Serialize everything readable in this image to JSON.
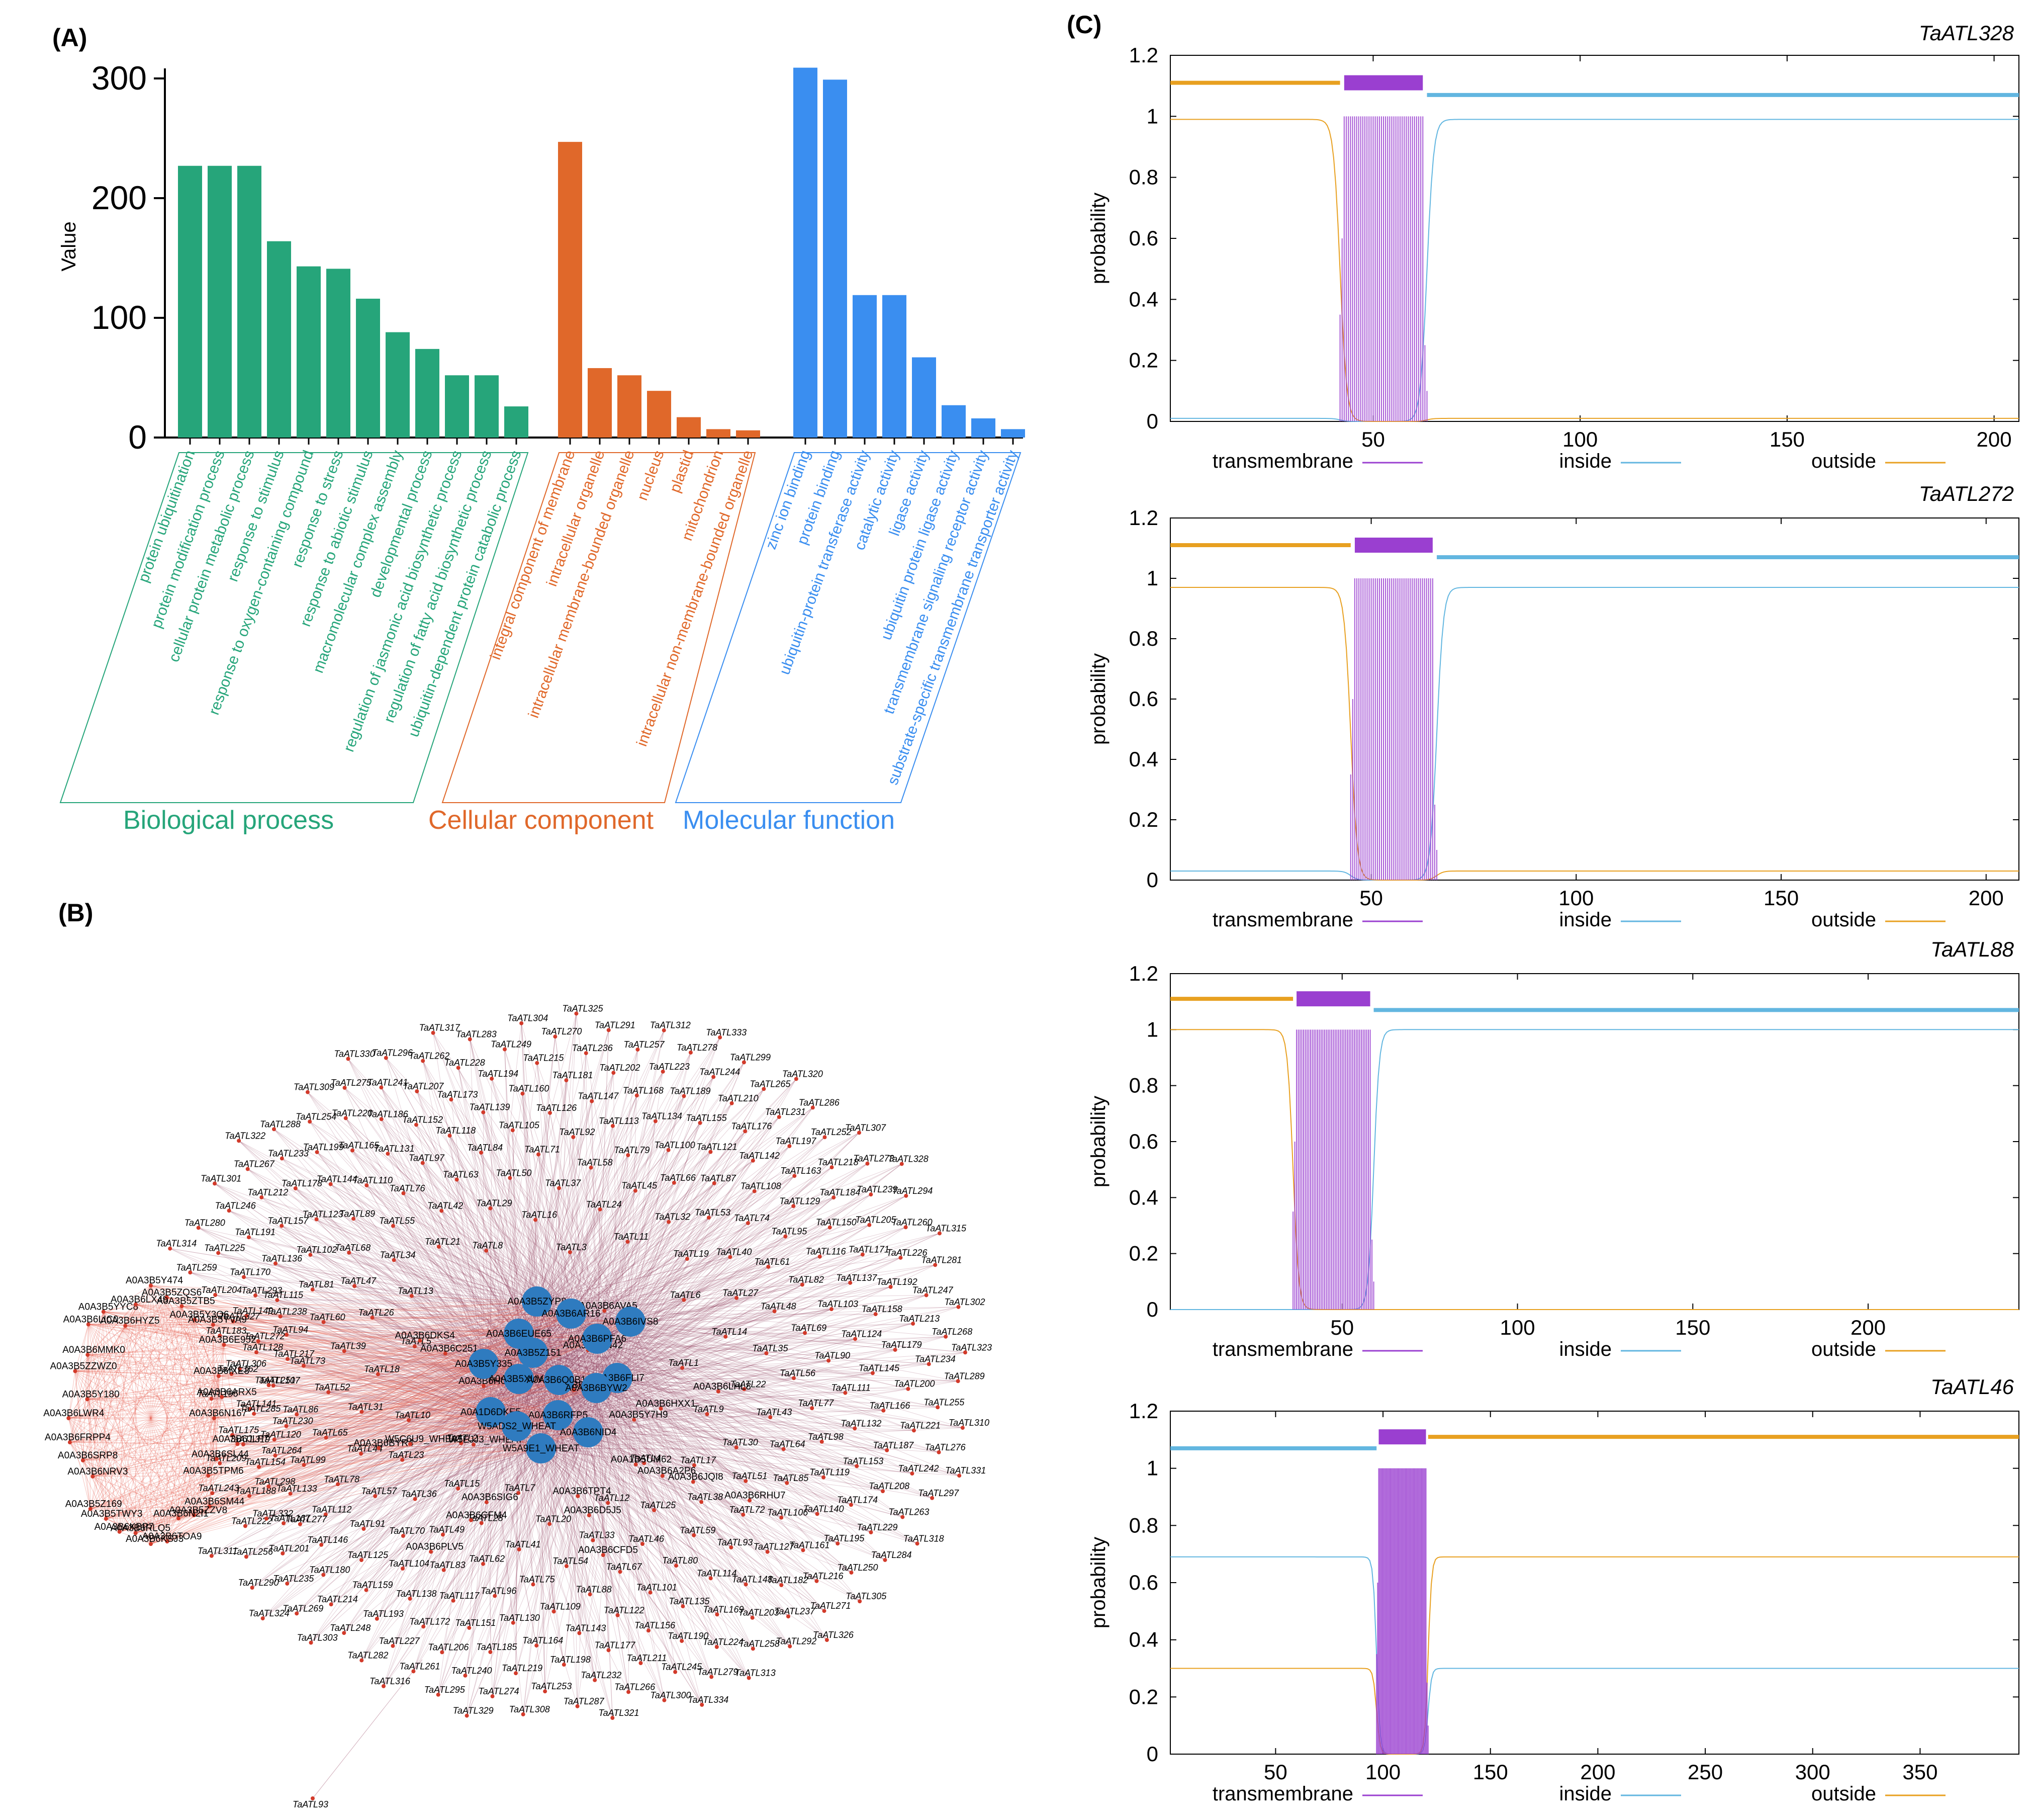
{
  "panel_labels": {
    "a": "(A)",
    "b": "(B)",
    "c": "(C)"
  },
  "colors": {
    "biological": "#26a57a",
    "cellular": "#e0682a",
    "molecular": "#3a8ef0",
    "transmembrane": "#9a3fd0",
    "inside": "#62b6e0",
    "outside": "#e8a020",
    "edge_red": "#e45a4a",
    "edge_maroon": "#8a3050",
    "hub": "#2f7bbf"
  },
  "chart_data": [
    {
      "type": "bar",
      "panel": "(A)",
      "ylabel": "Value",
      "ylim": [
        0,
        300
      ],
      "yticks": [
        0,
        100,
        200,
        300
      ],
      "groups": [
        {
          "name": "Biological process",
          "color": "#26a57a",
          "categories": [
            "protein ubiquitination",
            "protein modification process",
            "cellular protein metabolic process",
            "response to stimulus",
            "response to oxygen-containing compound",
            "response to stress",
            "response to abiotic stimulus",
            "macromolecular complex assembly",
            "developmental process",
            "regulation of jasmonic acid biosynthetic process",
            "regulation of fatty acid biosynthetic process",
            "ubiquitin-dependent protein catabolic process"
          ],
          "values": [
            227,
            227,
            227,
            164,
            143,
            141,
            116,
            88,
            74,
            52,
            52,
            26
          ]
        },
        {
          "name": "Cellular component",
          "color": "#e0682a",
          "categories": [
            "integral component of membrane",
            "intracellular organelle",
            "intracellular membrane-bounded organelle",
            "nucleus",
            "plastid",
            "mitochondrion",
            "intracellular non-membrane-bounded organelle"
          ],
          "values": [
            247,
            58,
            52,
            39,
            17,
            7,
            6
          ]
        },
        {
          "name": "Molecular function",
          "color": "#3a8ef0",
          "categories": [
            "zinc ion binding",
            "protein binding",
            "ubiquitin-protein transferase activity",
            "catalytic activity",
            "ligase activity",
            "ubiquitin protein ligase activity",
            "transmembrane signaling receptor activity",
            "substrate-specific transmembrane transporter activity"
          ],
          "values": [
            309,
            299,
            119,
            119,
            67,
            27,
            16,
            7
          ]
        }
      ]
    },
    {
      "type": "line",
      "panel": "(C)",
      "title": "TaATL328",
      "ylabel": "probability",
      "xlim": [
        1,
        206
      ],
      "ylim": [
        0,
        1.2
      ],
      "xticks": [
        50,
        100,
        150,
        200
      ],
      "yticks": [
        "0",
        "0.2",
        "0.4",
        "0.6",
        "0.8",
        "1",
        "1.2"
      ],
      "topology": [
        [
          "outside",
          1,
          42
        ],
        [
          "transmembrane",
          43,
          62
        ],
        [
          "inside",
          63,
          206
        ]
      ],
      "tm_region": [
        43,
        62
      ],
      "flank_levels": {
        "left_main": 0.99,
        "left_minor": 0.01,
        "right_main": 0.99,
        "right_minor": 0.01
      },
      "series": [
        {
          "name": "transmembrane"
        },
        {
          "name": "inside"
        },
        {
          "name": "outside"
        }
      ]
    },
    {
      "type": "line",
      "panel": "(C)",
      "title": "TaATL272",
      "ylabel": "probability",
      "xlim": [
        1,
        208
      ],
      "ylim": [
        0,
        1.2
      ],
      "xticks": [
        50,
        100,
        150,
        200
      ],
      "yticks": [
        "0",
        "0.2",
        "0.4",
        "0.6",
        "0.8",
        "1",
        "1.2"
      ],
      "topology": [
        [
          "outside",
          1,
          45
        ],
        [
          "transmembrane",
          46,
          65
        ],
        [
          "inside",
          66,
          208
        ]
      ],
      "tm_region": [
        46,
        65
      ],
      "flank_levels": {
        "left_main": 0.97,
        "left_minor": 0.03,
        "right_main": 0.97,
        "right_minor": 0.03
      },
      "series": [
        {
          "name": "transmembrane"
        },
        {
          "name": "inside"
        },
        {
          "name": "outside"
        }
      ]
    },
    {
      "type": "line",
      "panel": "(C)",
      "title": "TaATL88",
      "ylabel": "probability",
      "xlim": [
        1,
        243
      ],
      "ylim": [
        0,
        1.2
      ],
      "xticks": [
        50,
        100,
        150,
        200
      ],
      "yticks": [
        "0",
        "0.2",
        "0.4",
        "0.6",
        "0.8",
        "1",
        "1.2"
      ],
      "topology": [
        [
          "outside",
          1,
          36
        ],
        [
          "transmembrane",
          37,
          58
        ],
        [
          "inside",
          59,
          243
        ]
      ],
      "tm_region": [
        37,
        58
      ],
      "flank_levels": {
        "left_main": 1.0,
        "left_minor": 0.0,
        "right_main": 1.0,
        "right_minor": 0.0
      },
      "series": [
        {
          "name": "transmembrane"
        },
        {
          "name": "inside"
        },
        {
          "name": "outside"
        }
      ]
    },
    {
      "type": "line",
      "panel": "(C)",
      "title": "TaATL46",
      "ylabel": "probability",
      "xlim": [
        1,
        396
      ],
      "ylim": [
        0,
        1.2
      ],
      "xticks": [
        50,
        100,
        150,
        200,
        250,
        300,
        350
      ],
      "yticks": [
        "0",
        "0.2",
        "0.4",
        "0.6",
        "0.8",
        "1",
        "1.2"
      ],
      "topology": [
        [
          "inside",
          1,
          97
        ],
        [
          "transmembrane",
          98,
          120
        ],
        [
          "outside",
          121,
          396
        ]
      ],
      "tm_region": [
        98,
        120
      ],
      "flank_levels": {
        "left_main": 0.69,
        "left_minor": 0.3,
        "right_main": 0.69,
        "right_minor": 0.3
      },
      "series": [
        {
          "name": "transmembrane"
        },
        {
          "name": "inside"
        },
        {
          "name": "outside"
        }
      ]
    }
  ],
  "network": {
    "panel": "(B)",
    "hub_nodes": [
      "A0A3B5ZYP8",
      "A0A3B6EUE65",
      "A0A3B6AR16",
      "A0A3B5Z151",
      "A0A3B6PFA6",
      "A0A3B6IVS8",
      "A0A3B5Y335",
      "A0A3B5XUV6",
      "A0A3B6Q0B19",
      "A0A3B6FLI7",
      "A0A3B6BYW2",
      "A0A1D6DKE5",
      "A0A3B6RFP5",
      "W5ADS2_WHEAT",
      "A0A3B6NID4",
      "W5A9E1_WHEAT"
    ],
    "left_cluster": [
      "A0A3B6N167",
      "A0A3B6JLF7",
      "A0A3B6SL44",
      "A0A3B5TPM6",
      "A0A3B6SM44",
      "A0A3B5ZZV8",
      "A0A3B6N2I1",
      "A0A3B6TOA9",
      "A0A3B6KSJ3",
      "A0A3B6RLQ5",
      "A0A3B6KBP7",
      "A0A3B5TWY3",
      "A0A3B5Z169",
      "A0A3B6NRV3",
      "A0A3B6SRP8",
      "A0A3B6FRPP4",
      "A0A3B6LWR4",
      "A0A3B5Y180",
      "A0A3B5ZZWZ0",
      "A0A3B6MMK0",
      "A0A3B6LIC0",
      "A0A3B5YYC8",
      "A0A3B6HYZ5",
      "A0A3B6LX49",
      "A0A3B5Y474",
      "A0A3B5ZQS6",
      "A0A3B5ZTB5",
      "A0A3B5Y3Q6",
      "A0A3B5YVA9",
      "A0A3B6E952",
      "A0A3B6IXE3",
      "A0A3B6ARX5"
    ],
    "mid_nodes": [
      "A0A1D5UM62",
      "A0A3B6D5J5",
      "A0A3B6CFM4",
      "A0A3B6BYR4",
      "A0A3B6DKS4",
      "A0A3B6LGB9",
      "A0A3B6HXX1",
      "A0A3B6JQI8",
      "A0A3B6CFD5",
      "A0A3B6PLV5",
      "W5EJJ3_WHEAT",
      "A0A3B6HU81",
      "A0A3B6QN42",
      "A0A3B6LHL8",
      "A0A3B6RHU7",
      "A0A3B6TPT4",
      "A0A3B6SIG6",
      "W5C6U9_WHEAT",
      "A0A3B6C251",
      "A0A3B6AVA5",
      "A0A3B5Y7H9",
      "A0A3B6A2P6"
    ],
    "atl_prefix": "TaATL",
    "atl_ids": [
      1,
      2,
      3,
      4,
      5,
      6,
      7,
      8,
      9,
      10,
      11,
      12,
      13,
      14,
      15,
      16,
      17,
      18,
      19,
      20,
      21,
      22,
      23,
      24,
      25,
      26,
      27,
      28,
      29,
      30,
      31,
      32,
      33,
      34,
      35,
      36,
      37,
      38,
      39,
      40,
      41,
      42,
      43,
      44,
      45,
      46,
      47,
      48,
      49,
      50,
      51,
      52,
      53,
      54,
      55,
      56,
      57,
      58,
      59,
      60,
      61,
      62,
      63,
      64,
      65,
      66,
      67,
      68,
      69,
      70,
      71,
      72,
      73,
      74,
      75,
      76,
      77,
      78,
      79,
      80,
      81,
      82,
      83,
      84,
      85,
      86,
      87,
      88,
      89,
      90,
      91,
      92,
      93,
      94,
      95,
      96,
      97,
      98,
      99,
      100,
      101,
      102,
      103,
      104,
      105,
      106,
      107,
      108,
      109,
      110,
      111,
      112,
      113,
      114,
      115,
      116,
      117,
      118,
      119,
      120,
      121,
      122,
      123,
      124,
      125,
      126,
      127,
      128,
      129,
      130,
      131,
      132,
      133,
      134,
      135,
      136,
      137,
      138,
      139,
      140,
      141,
      142,
      143,
      144,
      145,
      146,
      147,
      148,
      149,
      150,
      151,
      152,
      153,
      154,
      155,
      156,
      157,
      158,
      159,
      160,
      161,
      162,
      163,
      164,
      165,
      166,
      167,
      168,
      169,
      170,
      171,
      172,
      173,
      174,
      175,
      176,
      177,
      178,
      179,
      180,
      181,
      182,
      183,
      184,
      185,
      186,
      187,
      188,
      189,
      190,
      191,
      192,
      193,
      194,
      195,
      196,
      197,
      198,
      199,
      200,
      201,
      202,
      203,
      204,
      205,
      206,
      207,
      208,
      209,
      210,
      211,
      212,
      213,
      214,
      215,
      216,
      217,
      218,
      219,
      220,
      221,
      222,
      223,
      224,
      225,
      226,
      227,
      228,
      229,
      230,
      231,
      232,
      233,
      234,
      235,
      236,
      237,
      238,
      239,
      240,
      241,
      242,
      243,
      244,
      245,
      246,
      247,
      248,
      249,
      250,
      251,
      252,
      253,
      254,
      255,
      256,
      257,
      258,
      259,
      260,
      261,
      262,
      263,
      264,
      265,
      266,
      267,
      268,
      269,
      270,
      271,
      272,
      273,
      274,
      275,
      276,
      277,
      278,
      279,
      280,
      281,
      282,
      283,
      284,
      285,
      286,
      287,
      288,
      289,
      290,
      291,
      292,
      293,
      294,
      295,
      296,
      297,
      298,
      299,
      300,
      301,
      302,
      303,
      304,
      305,
      306,
      307,
      308,
      309,
      310,
      311,
      312,
      313,
      314,
      315,
      316,
      317,
      318,
      319,
      320,
      321,
      322,
      323,
      324,
      325,
      326,
      327,
      328,
      329,
      330,
      331,
      332,
      333,
      334
    ],
    "outlier_label": "TaATL93"
  }
}
